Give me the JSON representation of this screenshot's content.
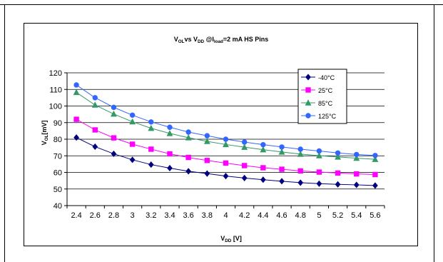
{
  "chart_data": {
    "type": "line",
    "title": {
      "parts": [
        "V",
        "OL",
        "vs V",
        "DD",
        " @I",
        "load",
        "=2 mA HS Pins"
      ]
    },
    "xlabel": {
      "parts": [
        "V",
        "DD",
        " [V]"
      ]
    },
    "ylabel": {
      "parts": [
        "V",
        "OL",
        "[mV]"
      ]
    },
    "x": [
      2.4,
      2.6,
      2.8,
      3.0,
      3.2,
      3.4,
      3.6,
      3.8,
      4.0,
      4.2,
      4.4,
      4.6,
      4.8,
      5.0,
      5.2,
      5.4,
      5.6
    ],
    "x_tick_labels": [
      "2.4",
      "2.6",
      "2.8",
      "3",
      "3.2",
      "3.4",
      "3.6",
      "3.8",
      "4",
      "4.2",
      "4.4",
      "4.6",
      "4.8",
      "5",
      "5.2",
      "5.4",
      "5.6"
    ],
    "ylim": [
      40,
      120
    ],
    "y_ticks": [
      40,
      50,
      60,
      70,
      80,
      90,
      100,
      110,
      120
    ],
    "grid": "horizontal",
    "legend_position": "top-right",
    "series": [
      {
        "name": "-40°C",
        "color": "#000080",
        "marker": "diamond",
        "values": [
          81,
          75.5,
          71.2,
          67.6,
          64.7,
          62.6,
          60.7,
          59.3,
          57.8,
          56.6,
          55.6,
          54.7,
          53.8,
          53.2,
          52.8,
          52.5,
          52.1
        ]
      },
      {
        "name": "25°C",
        "color": "#FF00FF",
        "marker": "square",
        "values": [
          92,
          85.6,
          80.8,
          77,
          74,
          71.2,
          69,
          67.2,
          65.6,
          64.1,
          62.8,
          61.9,
          60.9,
          60.2,
          59.6,
          59.1,
          58.7
        ]
      },
      {
        "name": "85°C",
        "color": "#339966",
        "marker": "triangle",
        "values": [
          108.2,
          100.6,
          95.2,
          90.5,
          86.6,
          83.5,
          80.9,
          78.7,
          76.8,
          75.2,
          73.7,
          72.3,
          71,
          70.1,
          69.3,
          68.6,
          67.9
        ]
      },
      {
        "name": "125°C",
        "color": "#3366FF",
        "marker": "circle",
        "values": [
          112.7,
          105,
          99.2,
          94.5,
          90.4,
          87.2,
          84.3,
          82.1,
          80,
          78.3,
          76.7,
          75.3,
          74,
          72.9,
          71.7,
          70.8,
          70.2
        ]
      }
    ]
  }
}
